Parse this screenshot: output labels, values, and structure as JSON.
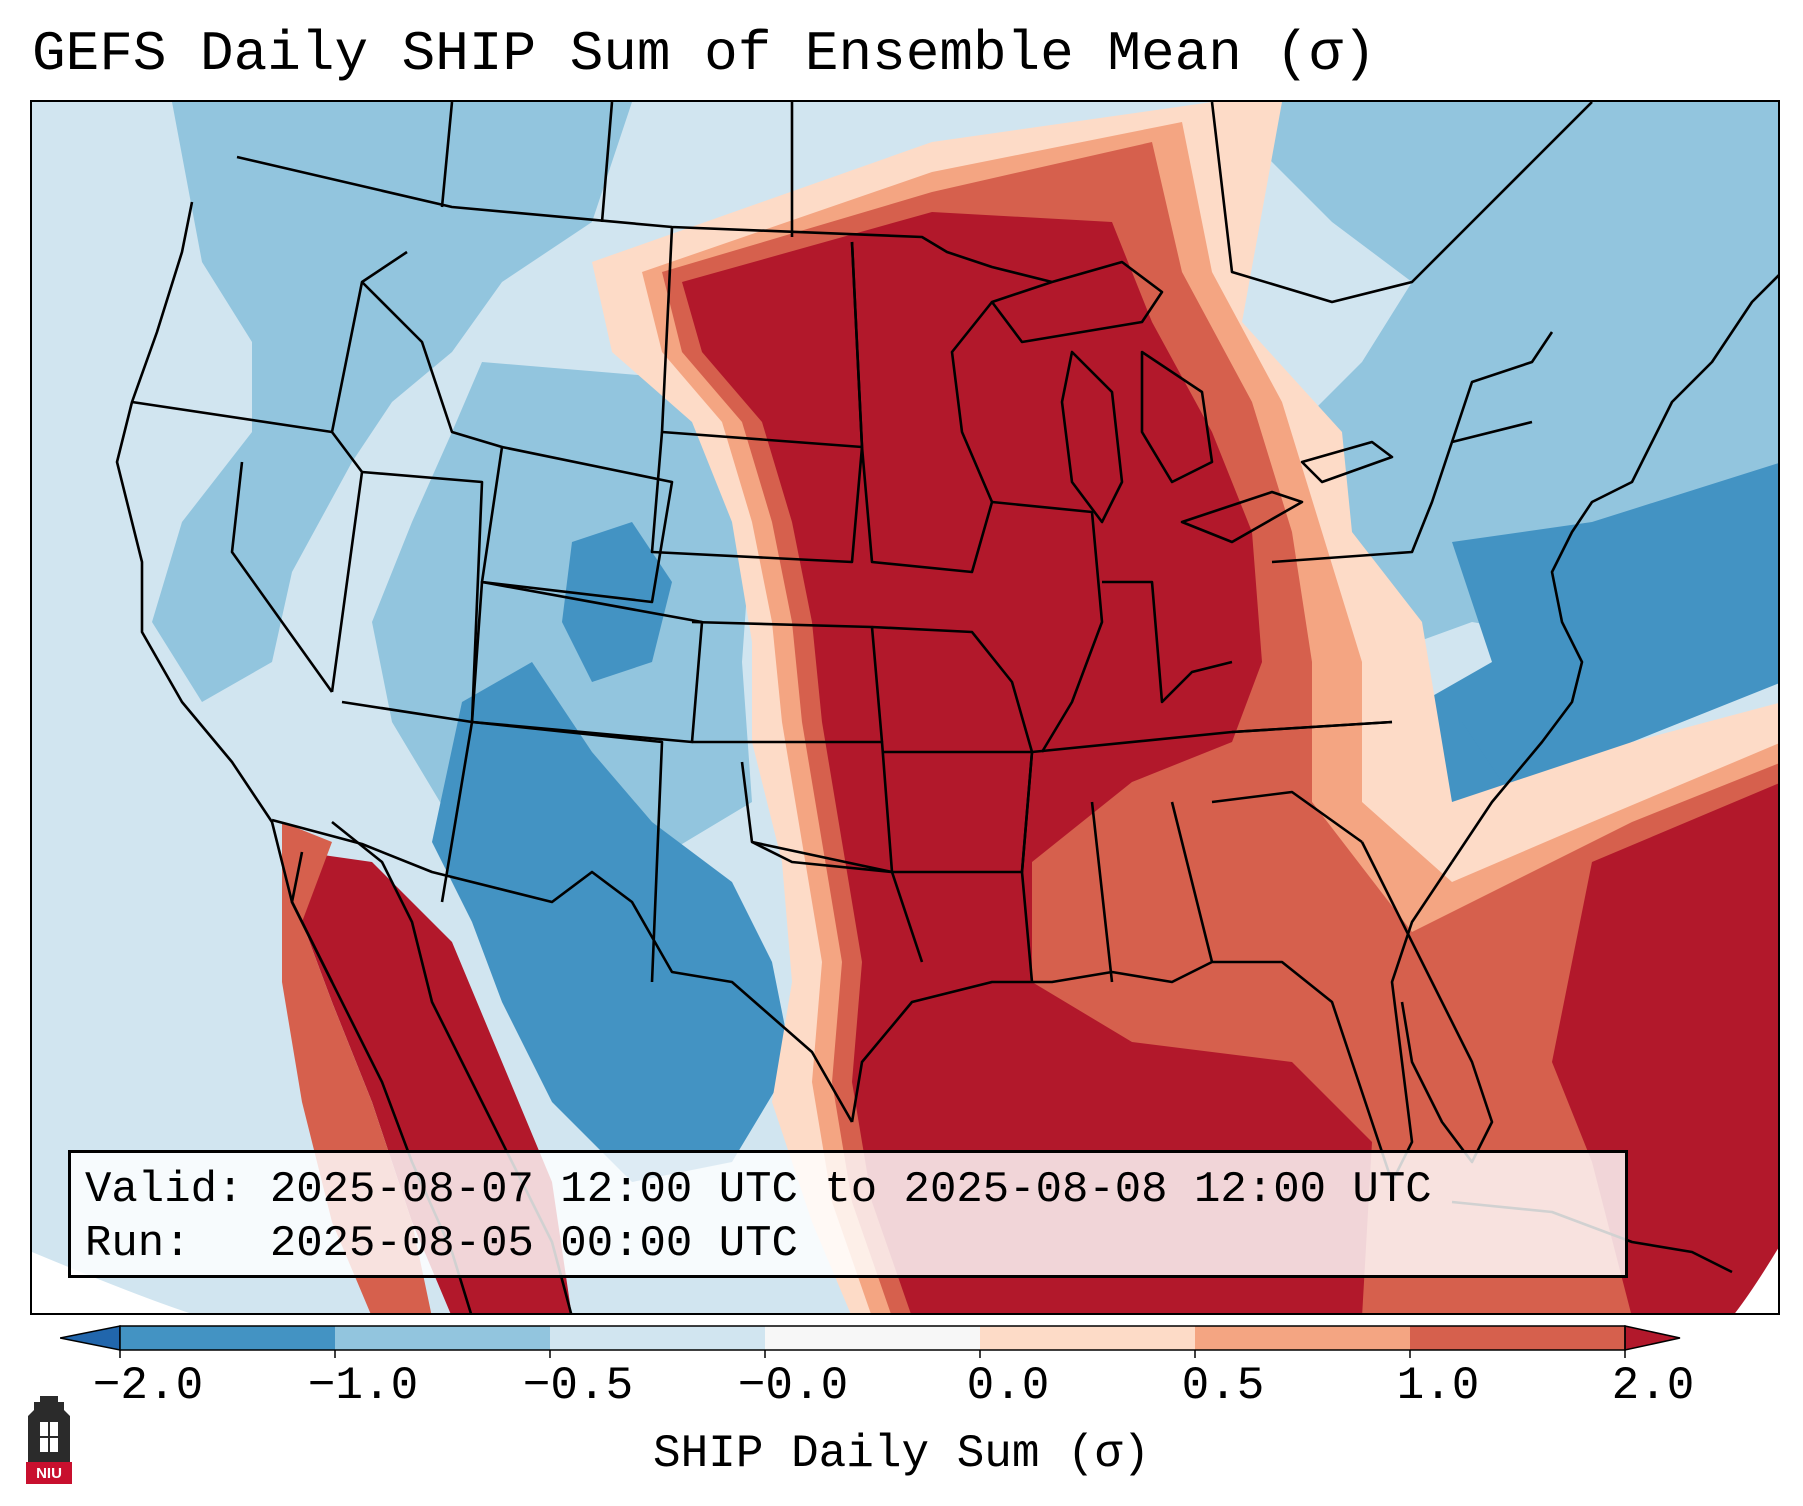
{
  "title": "GEFS Daily SHIP Sum of Ensemble Mean (σ)",
  "info": {
    "valid_label": "Valid:",
    "valid_value": "2025-08-07 12:00 UTC to 2025-08-08 12:00 UTC",
    "run_label": "Run:",
    "run_value": "2025-08-05 00:00 UTC"
  },
  "colorbar": {
    "label": "SHIP Daily Sum (σ)",
    "ticks": [
      "−2.0",
      "−1.0",
      "−0.5",
      "−0.0",
      "0.0",
      "0.5",
      "1.0",
      "2.0"
    ],
    "colors": {
      "extend_low": "#2166ac",
      "bin_m2_m1": "#4393c3",
      "bin_m1_m05": "#92c5de",
      "bin_m05_0": "#d1e5f0",
      "bin_zero": "#f7f7f7",
      "bin_0_05": "#fddbc7",
      "bin_05_1": "#f4a582",
      "bin_1_2": "#d6604d",
      "extend_high": "#b2182b"
    }
  },
  "logo": {
    "text": "NIU",
    "colors": {
      "bg": "#c8102e",
      "tower": "#2b2b2b"
    }
  }
}
